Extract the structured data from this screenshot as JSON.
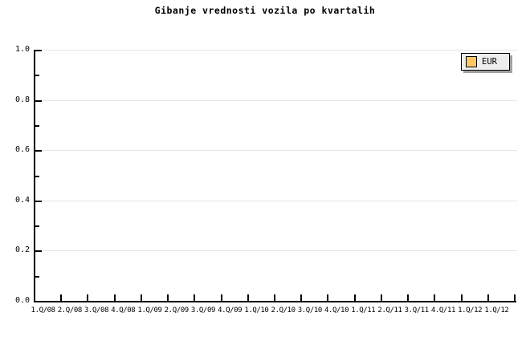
{
  "title": "Gibanje vrednosti vozila po kvartalih",
  "legend": {
    "items": [
      {
        "label": "EUR",
        "swatch_color": "#ffc864"
      }
    ]
  },
  "colors": {
    "background": "#ffffff",
    "axis": "#000000",
    "gridline": "#e5e5e5",
    "legend_background": "#eeeeee",
    "legend_shadow": "#a0a0a0",
    "text": "#000000"
  },
  "chart_data": {
    "type": "line",
    "title": "Gibanje vrednosti vozila po kvartalih",
    "categories": [
      "1.Q/08",
      "2.Q/08",
      "3.Q/08",
      "4.Q/08",
      "1.Q/09",
      "2.Q/09",
      "3.Q/09",
      "4.Q/09",
      "1.Q/10",
      "2.Q/10",
      "3.Q/10",
      "4.Q/10",
      "1.Q/11",
      "2.Q/11",
      "3.Q/11",
      "4.Q/11",
      "1.Q/12",
      "1.Q/12"
    ],
    "series": [
      {
        "name": "EUR",
        "color": "#ffc864",
        "values": []
      }
    ],
    "ylim": [
      0.0,
      1.0
    ],
    "y_major_ticks": [
      0.0,
      0.2,
      0.4,
      0.6,
      0.8,
      1.0
    ],
    "y_tick_labels": [
      "0.0",
      "0.2",
      "0.4",
      "0.6",
      "0.8",
      "1.0"
    ],
    "y_minor_tick_step": 0.1,
    "grid": "horizontal-major",
    "legend_position": "top-right",
    "plot_area_empty": true
  }
}
